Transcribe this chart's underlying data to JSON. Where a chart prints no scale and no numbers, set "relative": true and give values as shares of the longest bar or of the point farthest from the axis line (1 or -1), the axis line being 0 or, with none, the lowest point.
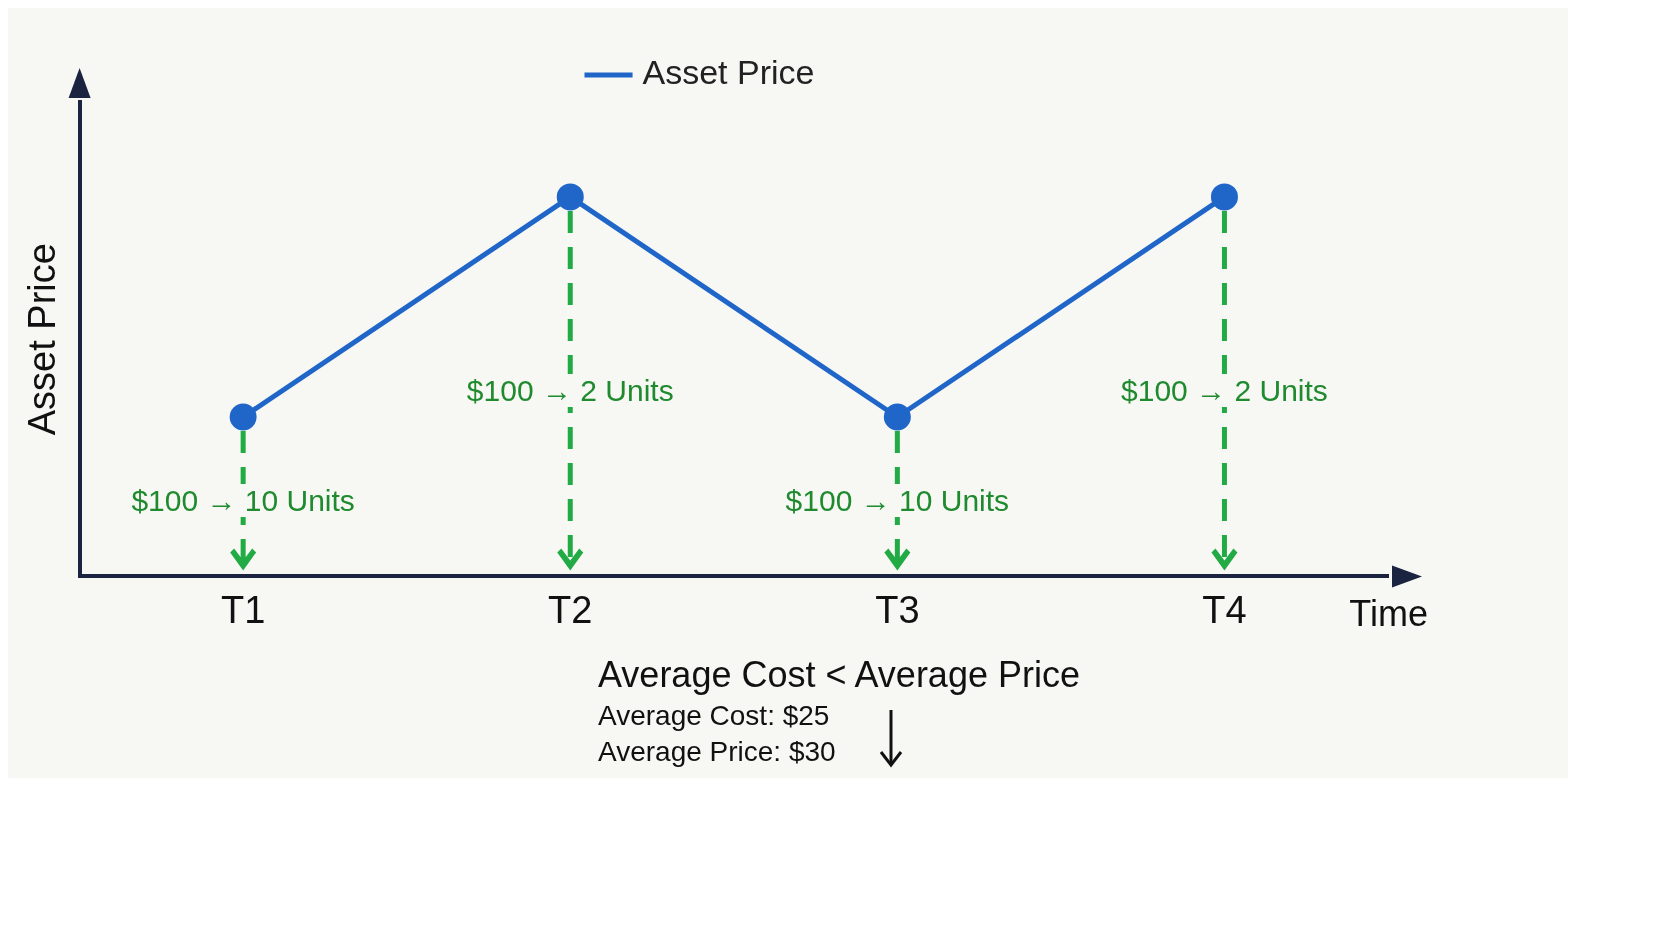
{
  "chart_data": {
    "type": "line",
    "relative": true,
    "ylabel": "Asset Price",
    "xlabel": "Time",
    "categories": [
      "T1",
      "T2",
      "T3",
      "T4"
    ],
    "series": [
      {
        "name": "Asset Price",
        "color": "#1f66c8",
        "values": [
          0.42,
          1,
          0.42,
          1
        ]
      }
    ],
    "marker": "circle",
    "line_style": "solid",
    "legend": "top",
    "grid": false,
    "annotations": [
      "$100 → 10 Units",
      "$100 → 2 Units",
      "$100 → 10 Units",
      "$100 → 2 Units",
      "Average Cost < Average Price",
      "Average Cost: $25",
      "Average Price: $30"
    ]
  }
}
